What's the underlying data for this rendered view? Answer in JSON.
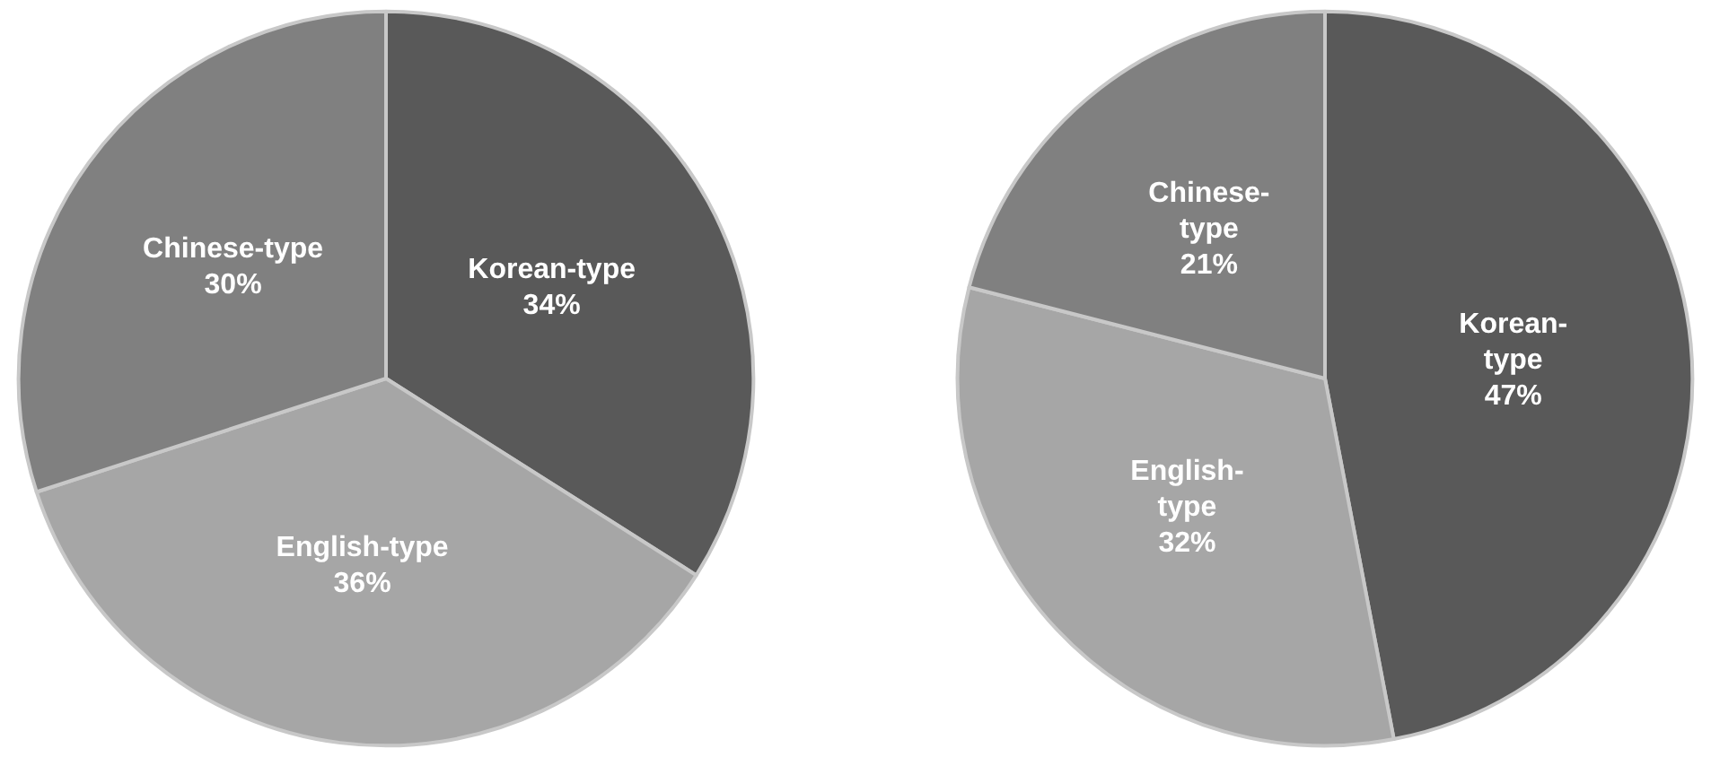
{
  "chart_data": [
    {
      "type": "pie",
      "categories": [
        "Korean-type",
        "English-type",
        "Chinese-type"
      ],
      "values": [
        34,
        36,
        30
      ],
      "value_labels": [
        "34%",
        "36%",
        "30%"
      ],
      "colors": [
        "#595959",
        "#a6a6a6",
        "#808080"
      ],
      "legend": false
    },
    {
      "type": "pie",
      "categories": [
        "Korean-type",
        "English-type",
        "Chinese-type"
      ],
      "values": [
        47,
        32,
        21
      ],
      "value_labels": [
        "47%",
        "32%",
        "21%"
      ],
      "colors": [
        "#595959",
        "#a6a6a6",
        "#808080"
      ],
      "legend": false
    }
  ]
}
